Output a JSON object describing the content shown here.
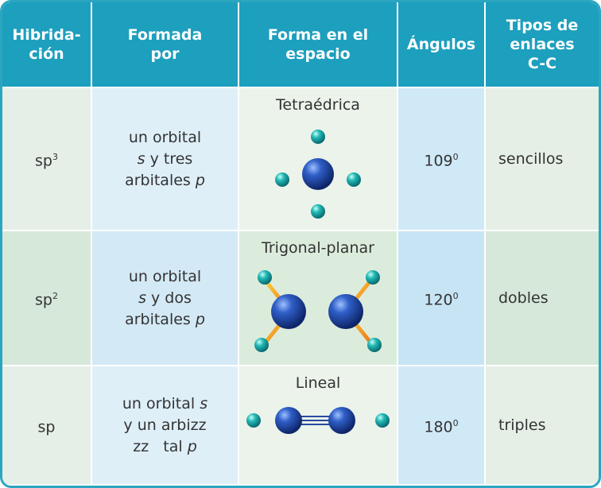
{
  "header": [
    [
      "Hibrida-",
      "ción"
    ],
    [
      "Formada",
      "por"
    ],
    [
      "Forma en el",
      "espacio"
    ],
    [
      "Ángulos"
    ],
    [
      "Tipos de",
      "enlaces",
      "C-C"
    ]
  ],
  "rows": [
    {
      "hybridization": {
        "base": "sp",
        "sup": "3"
      },
      "formed_by": [
        [
          {
            "text": "un orbital"
          }
        ],
        [
          {
            "text": "s",
            "italic": true
          },
          {
            "text": " y tres"
          }
        ],
        [
          {
            "text": "arbitales "
          },
          {
            "text": "p",
            "italic": true
          }
        ]
      ],
      "shape": "Tetraédrica",
      "angle": {
        "base": "109",
        "sup": "0"
      },
      "bond_type": "sencillos"
    },
    {
      "hybridization": {
        "base": "sp",
        "sup": "2"
      },
      "formed_by": [
        [
          {
            "text": "un orbital"
          }
        ],
        [
          {
            "text": "s",
            "italic": true
          },
          {
            "text": " y dos"
          }
        ],
        [
          {
            "text": "arbitales "
          },
          {
            "text": "p",
            "italic": true
          }
        ]
      ],
      "shape": "Trigonal-planar",
      "angle": {
        "base": "120",
        "sup": "0"
      },
      "bond_type": "dobles"
    },
    {
      "hybridization": {
        "base": "sp",
        "sup": ""
      },
      "formed_by": [
        [
          {
            "text": "un orbital "
          },
          {
            "text": "s",
            "italic": true
          }
        ],
        [
          {
            "text": "y un arbizz"
          }
        ],
        [
          {
            "text": "zz   tal "
          },
          {
            "text": "p",
            "italic": true
          }
        ]
      ],
      "shape": "Lineal",
      "angle": {
        "base": "180",
        "sup": "0"
      },
      "bond_type": "triples"
    }
  ]
}
